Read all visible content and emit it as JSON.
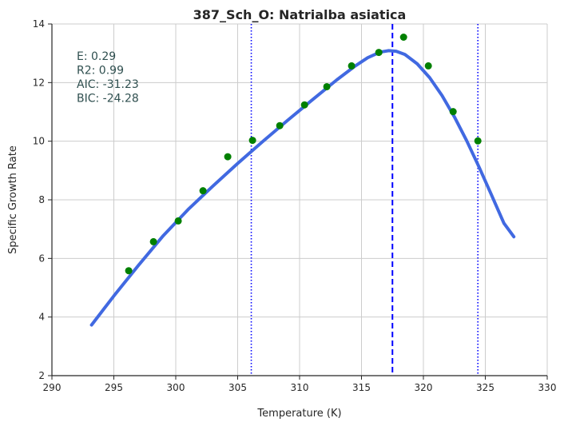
{
  "chart_data": {
    "type": "scatter",
    "title": "387_Sch_O: Natrialba asiatica",
    "xlabel": "Temperature (K)",
    "ylabel": "Specific Growth Rate",
    "xlim": [
      290,
      330
    ],
    "ylim": [
      2,
      14
    ],
    "xticks": [
      290,
      295,
      300,
      305,
      310,
      315,
      320,
      325,
      330
    ],
    "yticks": [
      2,
      4,
      6,
      8,
      10,
      12,
      14
    ],
    "grid": true,
    "stats": [
      {
        "label": "E:",
        "value": "0.29"
      },
      {
        "label": "R2:",
        "value": "0.99"
      },
      {
        "label": "AIC:",
        "value": "-31.23"
      },
      {
        "label": "BIC:",
        "value": "-24.28"
      }
    ],
    "points": {
      "color": "#008000",
      "x": [
        296.2,
        298.2,
        300.2,
        302.2,
        304.2,
        306.2,
        308.4,
        310.4,
        312.2,
        314.2,
        316.4,
        318.4,
        320.4,
        322.4,
        324.4
      ],
      "y": [
        5.58,
        6.57,
        7.28,
        8.31,
        9.47,
        10.03,
        10.53,
        11.24,
        11.86,
        12.57,
        13.03,
        13.55,
        12.57,
        11.01,
        10.01
      ]
    },
    "fit_curve": {
      "color": "#4169e1",
      "x": [
        293.2,
        295.0,
        297.0,
        299.0,
        301.0,
        303.0,
        305.0,
        307.0,
        309.0,
        311.0,
        313.0,
        314.5,
        315.5,
        316.5,
        317.2,
        317.8,
        318.5,
        319.5,
        320.5,
        321.5,
        322.5,
        323.5,
        324.5,
        325.5,
        326.5,
        327.3
      ],
      "y": [
        3.73,
        4.72,
        5.77,
        6.78,
        7.67,
        8.47,
        9.24,
        9.98,
        10.7,
        11.4,
        12.09,
        12.57,
        12.85,
        13.04,
        13.09,
        13.07,
        12.96,
        12.64,
        12.17,
        11.56,
        10.83,
        10.01,
        9.11,
        8.16,
        7.2,
        6.74
      ]
    },
    "vlines": [
      {
        "x": 317.5,
        "style": "dashed",
        "color": "#0000ff"
      },
      {
        "x": 306.1,
        "style": "dotted",
        "color": "#0000ff"
      },
      {
        "x": 324.4,
        "style": "dotted",
        "color": "#0000ff"
      }
    ],
    "colors": {
      "grid": "#cccccc",
      "axis": "#262626"
    }
  }
}
